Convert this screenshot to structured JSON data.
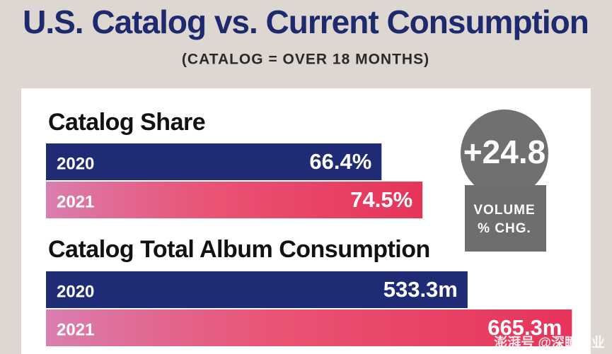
{
  "title": "U.S. Catalog vs. Current Consumption",
  "subtitle": "(CATALOG = OVER 18 MONTHS)",
  "annotation": {
    "value": "+24.8",
    "lines": [
      "VOLUME",
      "% CHG."
    ]
  },
  "watermark": "澎湃号 @深瞳商业",
  "chart_data": [
    {
      "type": "bar",
      "orientation": "horizontal",
      "title": "Catalog Share",
      "categories": [
        "2020",
        "2021"
      ],
      "values": [
        66.4,
        74.5
      ],
      "value_labels": [
        "66.4%",
        "74.5%"
      ],
      "colors": [
        "#1f2b75",
        "#e6345a"
      ],
      "xlim": [
        0,
        112
      ]
    },
    {
      "type": "bar",
      "orientation": "horizontal",
      "title": "Catalog Total Album Consumption",
      "categories": [
        "2020",
        "2021"
      ],
      "values": [
        533.3,
        665.3
      ],
      "value_labels": [
        "533.3m",
        "665.3m"
      ],
      "colors": [
        "#1f2b75",
        "#e6345a"
      ],
      "xlim": [
        0,
        716
      ]
    }
  ]
}
